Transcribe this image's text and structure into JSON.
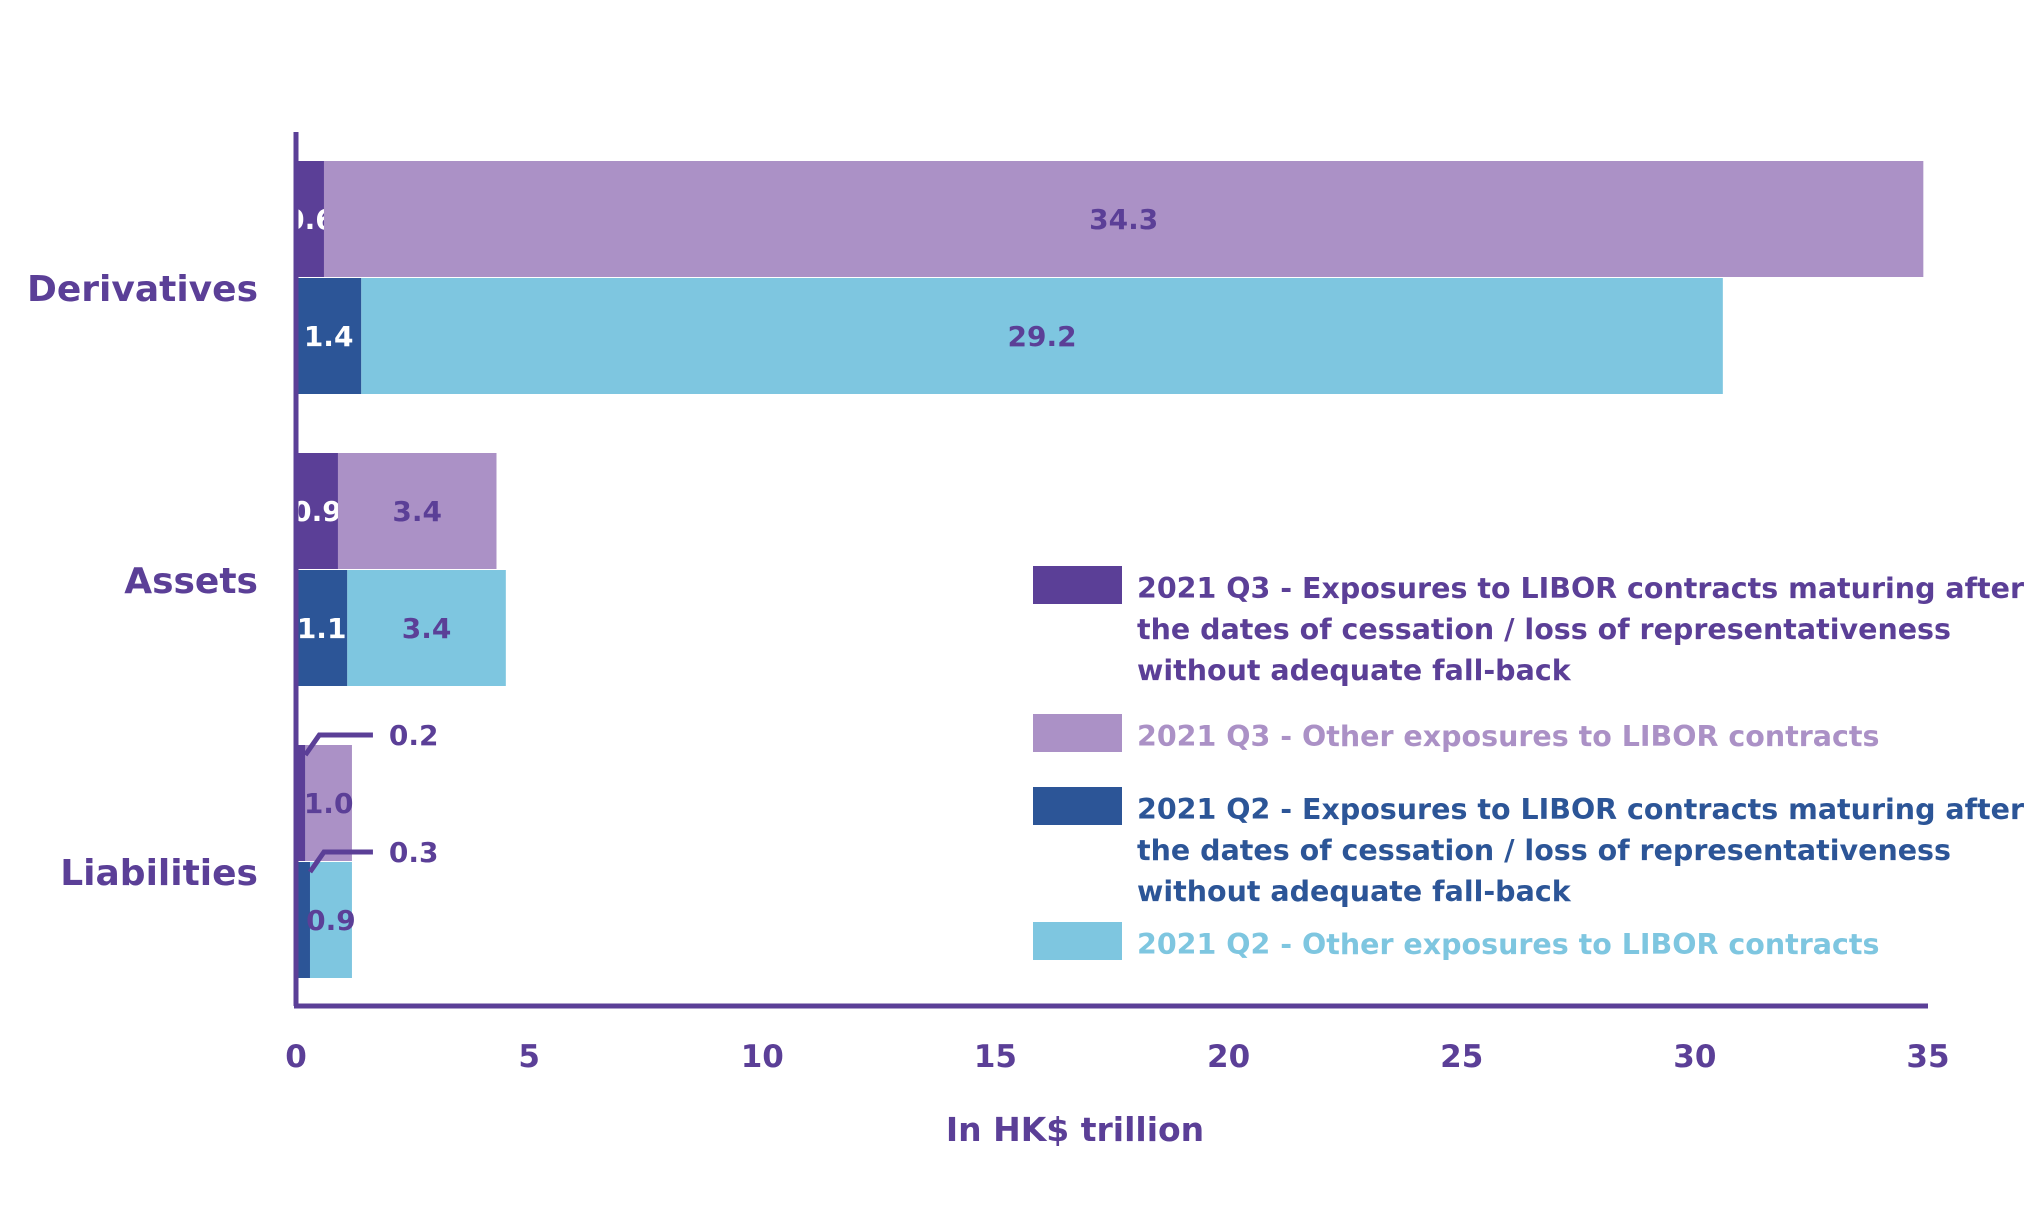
{
  "chart_data": {
    "type": "bar",
    "orientation": "horizontal",
    "stacked": true,
    "categories": [
      "Derivatives",
      "Assets",
      "Liabilities"
    ],
    "xlabel": "In HK$ trillion",
    "xlim": [
      0,
      35
    ],
    "xticks": [
      "0",
      "5",
      "10",
      "15",
      "20",
      "25",
      "30",
      "35"
    ],
    "grid": false,
    "legend_position": "bottom-right",
    "groups": [
      {
        "category": "Derivatives",
        "bars": [
          {
            "period": "2021 Q3",
            "segments": [
              {
                "series": "s1",
                "value": 0.6,
                "label": "0.6"
              },
              {
                "series": "s2",
                "value": 34.3,
                "label": "34.3"
              }
            ]
          },
          {
            "period": "2021 Q2",
            "segments": [
              {
                "series": "s3",
                "value": 1.4,
                "label": "1.4"
              },
              {
                "series": "s4",
                "value": 29.2,
                "label": "29.2"
              }
            ]
          }
        ]
      },
      {
        "category": "Assets",
        "bars": [
          {
            "period": "2021 Q3",
            "segments": [
              {
                "series": "s1",
                "value": 0.9,
                "label": "0.9"
              },
              {
                "series": "s2",
                "value": 3.4,
                "label": "3.4"
              }
            ]
          },
          {
            "period": "2021 Q2",
            "segments": [
              {
                "series": "s3",
                "value": 1.1,
                "label": "1.1"
              },
              {
                "series": "s4",
                "value": 3.4,
                "label": "3.4"
              }
            ]
          }
        ]
      },
      {
        "category": "Liabilities",
        "bars": [
          {
            "period": "2021 Q3",
            "segments": [
              {
                "series": "s1",
                "value": 0.2,
                "label": "0.2",
                "callout": true
              },
              {
                "series": "s2",
                "value": 1.0,
                "label": "1.0"
              }
            ]
          },
          {
            "period": "2021 Q2",
            "segments": [
              {
                "series": "s3",
                "value": 0.3,
                "label": "0.3",
                "callout": true
              },
              {
                "series": "s4",
                "value": 0.9,
                "label": "0.9"
              }
            ]
          }
        ]
      }
    ],
    "series": [
      {
        "id": "s1",
        "lines": [
          "2021 Q3 - Exposures to LIBOR contracts maturing after",
          "the dates of cessation / loss of representativeness",
          "without adequate fall-back"
        ],
        "color": "#5B3F97",
        "label_color": "#FFFFFF",
        "legend_color": "#5B3F97"
      },
      {
        "id": "s2",
        "lines": [
          "2021 Q3 - Other exposures to LIBOR contracts"
        ],
        "color": "#AB91C6",
        "label_color": "#5B3F97",
        "legend_color": "#AB91C6"
      },
      {
        "id": "s3",
        "lines": [
          "2021 Q2 - Exposures to LIBOR contracts maturing after",
          "the dates of cessation / loss of representativeness",
          "without adequate fall-back"
        ],
        "color": "#2C5597",
        "label_color": "#FFFFFF",
        "legend_color": "#2C5597"
      },
      {
        "id": "s4",
        "lines": [
          "2021 Q2 - Other exposures to LIBOR contracts"
        ],
        "color": "#7EC6E0",
        "label_color": "#5B3F97",
        "legend_color": "#7EC6E0"
      }
    ],
    "colors": {
      "axis": "#5B3F97",
      "text": "#5B3F97"
    }
  }
}
